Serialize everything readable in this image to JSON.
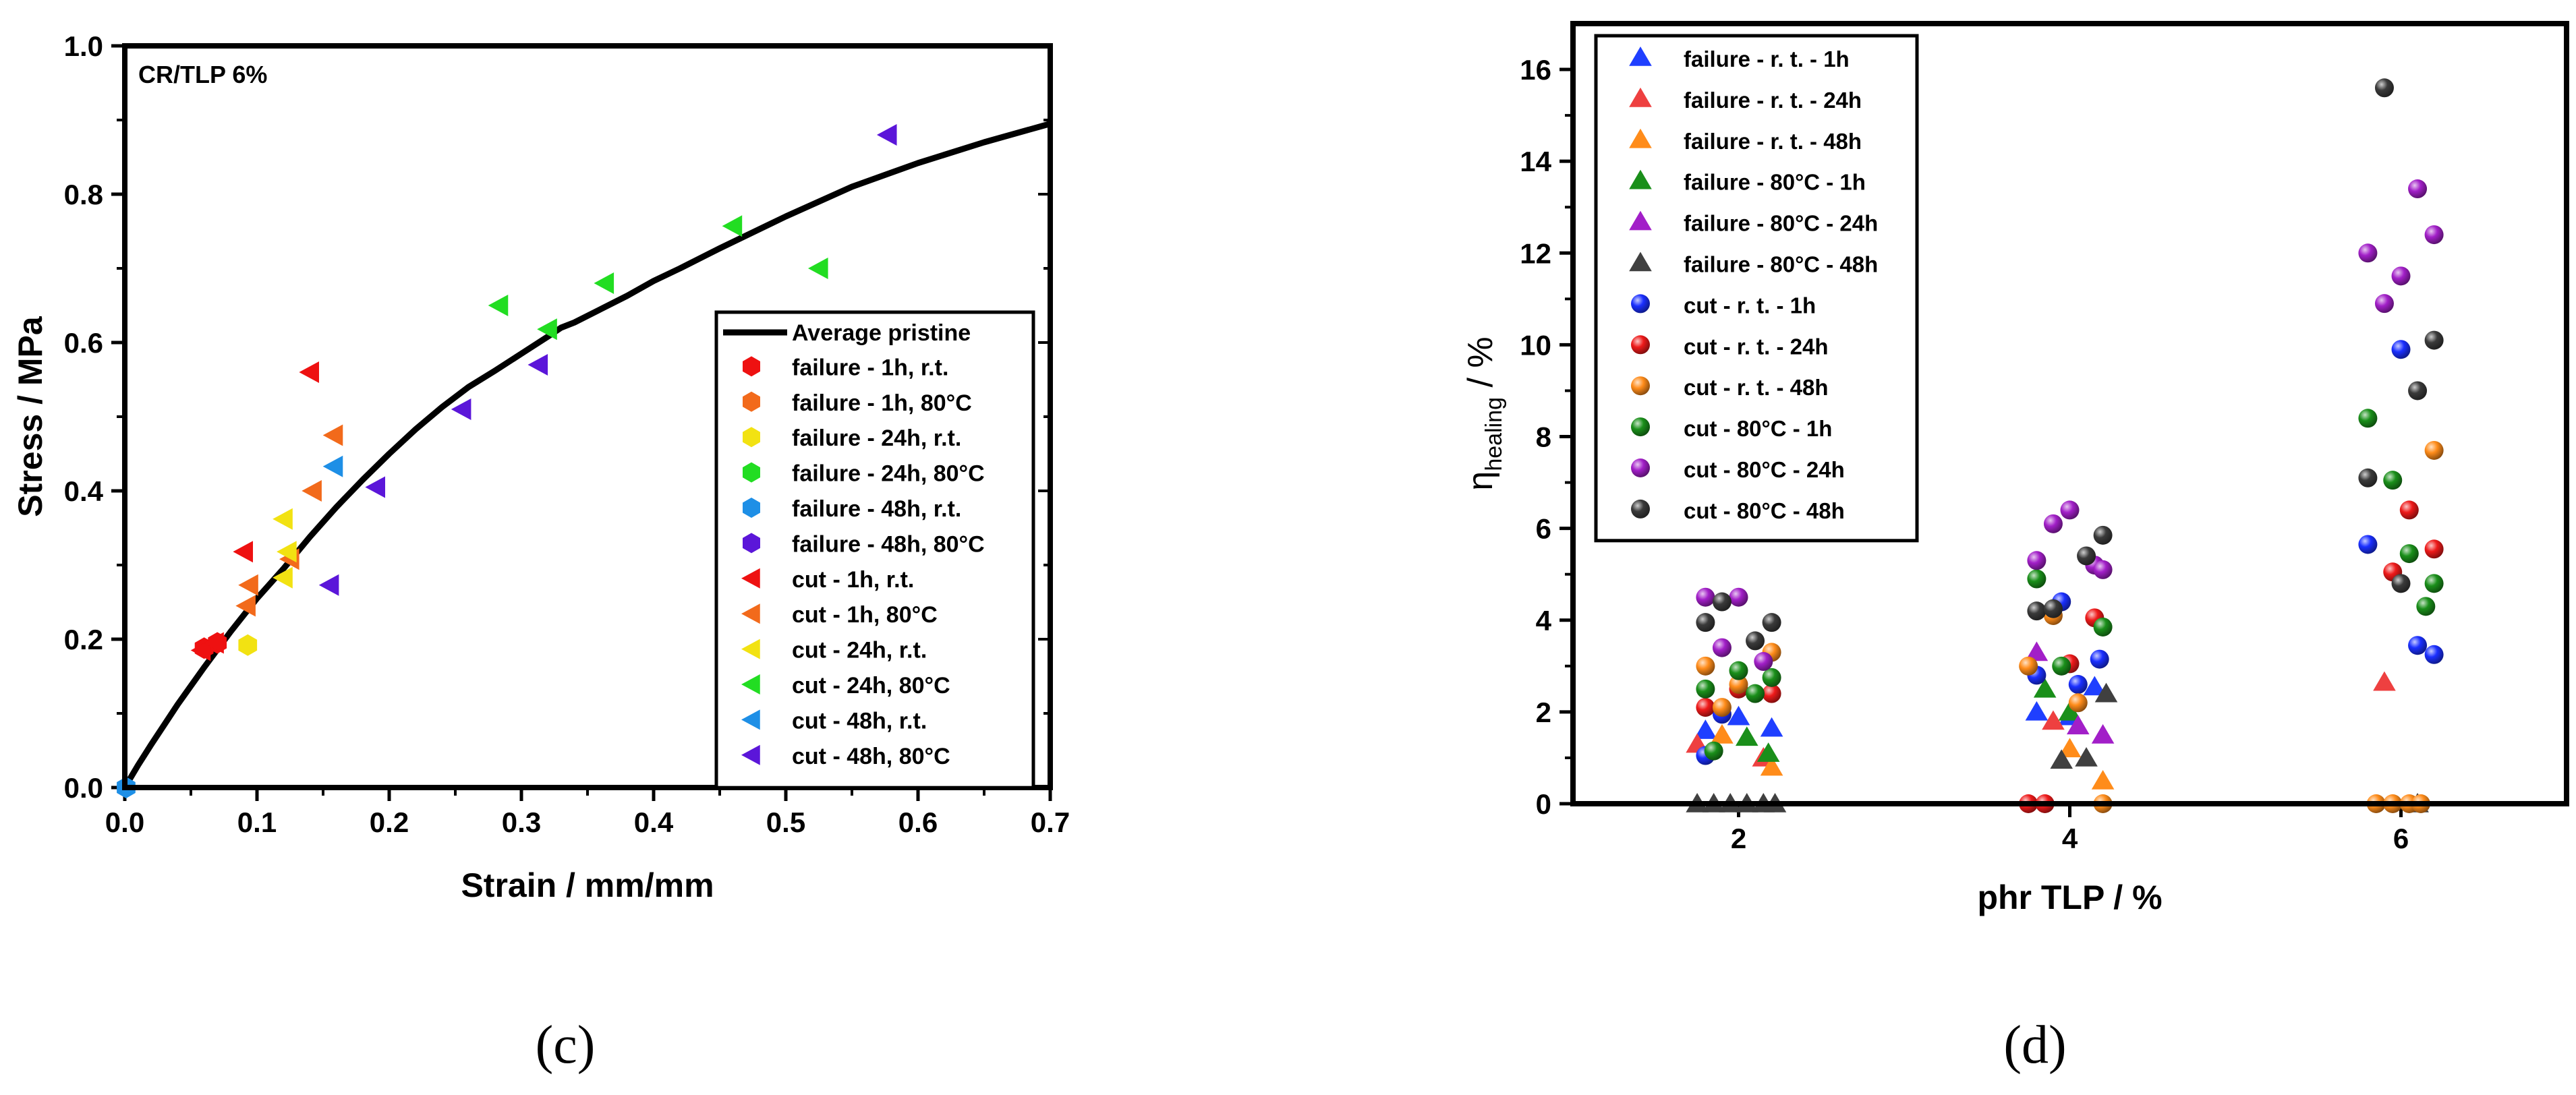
{
  "chart_data": [
    {
      "type": "scatter",
      "panel_label": "(c)",
      "annotation": "CR/TLP 6%",
      "xlabel": "Strain / mm/mm",
      "ylabel": "Stress / MPa",
      "xlim": [
        0,
        0.7
      ],
      "ylim": [
        0,
        1.0
      ],
      "xticks": [
        "0.0",
        "0.1",
        "0.2",
        "0.3",
        "0.4",
        "0.5",
        "0.6",
        "0.7"
      ],
      "yticks": [
        "0.0",
        "0.2",
        "0.4",
        "0.6",
        "0.8",
        "1.0"
      ],
      "legend_position": "bottom-right",
      "line": {
        "name": "Average pristine",
        "color": "#000000",
        "x": [
          0,
          0.01,
          0.02,
          0.04,
          0.06,
          0.08,
          0.1,
          0.12,
          0.14,
          0.16,
          0.18,
          0.2,
          0.22,
          0.24,
          0.26,
          0.28,
          0.3,
          0.32,
          0.33,
          0.34,
          0.36,
          0.38,
          0.4,
          0.42,
          0.45,
          0.5,
          0.55,
          0.6,
          0.65,
          0.7
        ],
        "y": [
          0,
          0.03,
          0.058,
          0.112,
          0.162,
          0.21,
          0.255,
          0.295,
          0.338,
          0.378,
          0.415,
          0.45,
          0.483,
          0.513,
          0.54,
          0.562,
          0.585,
          0.608,
          0.62,
          0.627,
          0.645,
          0.663,
          0.683,
          0.7,
          0.727,
          0.77,
          0.81,
          0.842,
          0.87,
          0.895
        ]
      },
      "series": [
        {
          "name": "failure - 1h, r.t.",
          "marker": "hexagon",
          "color": "#ee1111",
          "x": [
            0.06,
            0.07
          ],
          "y": [
            0.188,
            0.195
          ]
        },
        {
          "name": "failure - 1h, 80°C",
          "marker": "hexagon",
          "color": "#f26a1b",
          "x": [],
          "y": []
        },
        {
          "name": "failure - 24h, r.t.",
          "marker": "hexagon",
          "color": "#f2e212",
          "x": [
            0.093
          ],
          "y": [
            0.192
          ]
        },
        {
          "name": "failure - 24h, 80°C",
          "marker": "hexagon",
          "color": "#22dd22",
          "x": [],
          "y": []
        },
        {
          "name": "failure - 48h, r.t.",
          "marker": "hexagon",
          "color": "#1e8fe6",
          "x": [
            0.001
          ],
          "y": [
            0.0
          ]
        },
        {
          "name": "failure - 48h, 80°C",
          "marker": "hexagon",
          "color": "#5b16d9",
          "x": [],
          "y": []
        },
        {
          "name": "cut - 1h, r.t.",
          "marker": "triangle-left",
          "color": "#ee1111",
          "x": [
            0.058,
            0.068,
            0.09,
            0.14
          ],
          "y": [
            0.185,
            0.195,
            0.318,
            0.56
          ]
        },
        {
          "name": "cut - 1h, 80°C",
          "marker": "triangle-left",
          "color": "#f26a1b",
          "x": [
            0.092,
            0.094,
            0.125,
            0.142,
            0.158
          ],
          "y": [
            0.245,
            0.273,
            0.308,
            0.4,
            0.475
          ]
        },
        {
          "name": "cut - 24h, r.t.",
          "marker": "triangle-left",
          "color": "#f2e212",
          "x": [
            0.12,
            0.12,
            0.123
          ],
          "y": [
            0.283,
            0.362,
            0.318
          ]
        },
        {
          "name": "cut - 24h, 80°C",
          "marker": "triangle-left",
          "color": "#22dd22",
          "x": [
            0.283,
            0.32,
            0.363,
            0.46,
            0.525
          ],
          "y": [
            0.65,
            0.618,
            0.68,
            0.757,
            0.7
          ]
        },
        {
          "name": "cut - 48h, r.t.",
          "marker": "triangle-left",
          "color": "#1e8fe6",
          "x": [
            0.158
          ],
          "y": [
            0.433
          ]
        },
        {
          "name": "cut - 48h, 80°C",
          "marker": "triangle-left",
          "color": "#5b16d9",
          "x": [
            0.155,
            0.19,
            0.255,
            0.313,
            0.577
          ],
          "y": [
            0.273,
            0.405,
            0.51,
            0.57,
            0.88
          ]
        }
      ]
    },
    {
      "type": "scatter",
      "panel_label": "(d)",
      "xlabel": "phr TLP / %",
      "ylabel_main": "η",
      "ylabel_sub": "healing",
      "ylabel_unit": " / %",
      "xlim": [
        1,
        7
      ],
      "ylim": [
        0,
        17
      ],
      "xticks": [
        "2",
        "4",
        "6"
      ],
      "yticks": [
        "0",
        "2",
        "4",
        "6",
        "8",
        "10",
        "12",
        "14",
        "16"
      ],
      "legend_position": "top-left",
      "series": [
        {
          "name": "failure - r. t. - 1h",
          "marker": "triangle",
          "color": "#1f3fff",
          "x": [
            1.8,
            2.0,
            2.2,
            3.8,
            4.0,
            4.15
          ],
          "y": [
            1.6,
            1.9,
            1.65,
            2.0,
            1.9,
            2.55
          ]
        },
        {
          "name": "failure - r. t. - 24h",
          "marker": "triangle",
          "color": "#ee4040",
          "x": [
            1.75,
            2.15,
            3.9,
            5.9
          ],
          "y": [
            1.3,
            1.0,
            1.8,
            2.65
          ]
        },
        {
          "name": "failure - r. t. - 48h",
          "marker": "triangle",
          "color": "#ff8c1a",
          "x": [
            1.9,
            2.2,
            4.0,
            4.2
          ],
          "y": [
            1.5,
            0.8,
            1.2,
            0.5
          ]
        },
        {
          "name": "failure - 80°C - 1h",
          "marker": "triangle",
          "color": "#1a8f1a",
          "x": [
            2.05,
            2.18,
            3.85,
            4.0
          ],
          "y": [
            1.45,
            1.1,
            2.5,
            2.0
          ]
        },
        {
          "name": "failure - 80°C - 24h",
          "marker": "triangle",
          "color": "#a21fc8",
          "x": [
            3.8,
            4.05,
            4.2
          ],
          "y": [
            3.3,
            1.7,
            1.5
          ]
        },
        {
          "name": "failure - 80°C - 48h",
          "marker": "triangle",
          "color": "#404040",
          "x": [
            1.75,
            1.85,
            1.95,
            2.05,
            2.15,
            2.22,
            3.95,
            4.1,
            4.22,
            6.1
          ],
          "y": [
            0,
            0,
            0,
            0,
            0,
            0,
            0.95,
            1.0,
            2.4,
            0
          ]
        },
        {
          "name": "cut - r. t. - 1h",
          "marker": "sphere",
          "color": "#1a2fff",
          "x": [
            1.8,
            1.9,
            3.8,
            3.95,
            4.05,
            4.18,
            5.8,
            6.0,
            6.1,
            6.2
          ],
          "y": [
            1.05,
            1.95,
            2.8,
            4.4,
            2.6,
            3.15,
            5.65,
            9.9,
            3.45,
            3.25
          ]
        },
        {
          "name": "cut - r. t. - 24h",
          "marker": "sphere",
          "color": "#ee1a1a",
          "x": [
            1.8,
            2.0,
            2.2,
            3.75,
            3.85,
            4.0,
            4.15,
            5.95,
            6.05,
            6.2
          ],
          "y": [
            2.1,
            2.5,
            2.4,
            0,
            0,
            3.05,
            4.05,
            5.05,
            6.4,
            5.55
          ]
        },
        {
          "name": "cut - r. t. - 48h",
          "marker": "sphere",
          "color": "#ff8c1a",
          "x": [
            1.8,
            1.9,
            2.0,
            2.2,
            3.75,
            3.9,
            4.05,
            4.2,
            5.85,
            5.95,
            6.05,
            6.12,
            6.2
          ],
          "y": [
            3.0,
            2.1,
            2.6,
            3.3,
            3.0,
            4.1,
            2.2,
            0,
            0,
            0,
            0,
            0,
            7.7
          ]
        },
        {
          "name": "cut - 80°C - 1h",
          "marker": "sphere",
          "color": "#1a8f1a",
          "x": [
            1.8,
            1.85,
            2.0,
            2.1,
            2.2,
            3.8,
            3.95,
            4.2,
            5.8,
            5.95,
            6.05,
            6.15,
            6.2
          ],
          "y": [
            2.5,
            1.15,
            2.9,
            2.4,
            2.75,
            4.9,
            3.0,
            3.85,
            8.4,
            7.05,
            5.45,
            4.3,
            4.8
          ]
        },
        {
          "name": "cut - 80°C - 24h",
          "marker": "sphere",
          "color": "#a21fc8",
          "x": [
            1.8,
            1.9,
            2.0,
            2.15,
            3.8,
            3.9,
            4.0,
            4.15,
            4.2,
            5.8,
            5.9,
            6.0,
            6.1,
            6.2
          ],
          "y": [
            4.5,
            3.4,
            4.5,
            3.1,
            5.3,
            6.1,
            6.4,
            5.2,
            5.1,
            12.0,
            10.9,
            11.5,
            13.4,
            12.4
          ]
        },
        {
          "name": "cut - 80°C - 48h",
          "marker": "sphere",
          "color": "#3a3a3a",
          "x": [
            1.8,
            1.9,
            2.1,
            2.2,
            3.8,
            3.9,
            4.1,
            4.2,
            5.8,
            5.9,
            6.0,
            6.1,
            6.2
          ],
          "y": [
            3.95,
            4.4,
            3.55,
            3.95,
            4.2,
            4.25,
            5.4,
            5.85,
            7.1,
            15.6,
            4.8,
            9.0,
            10.1
          ]
        }
      ]
    }
  ]
}
